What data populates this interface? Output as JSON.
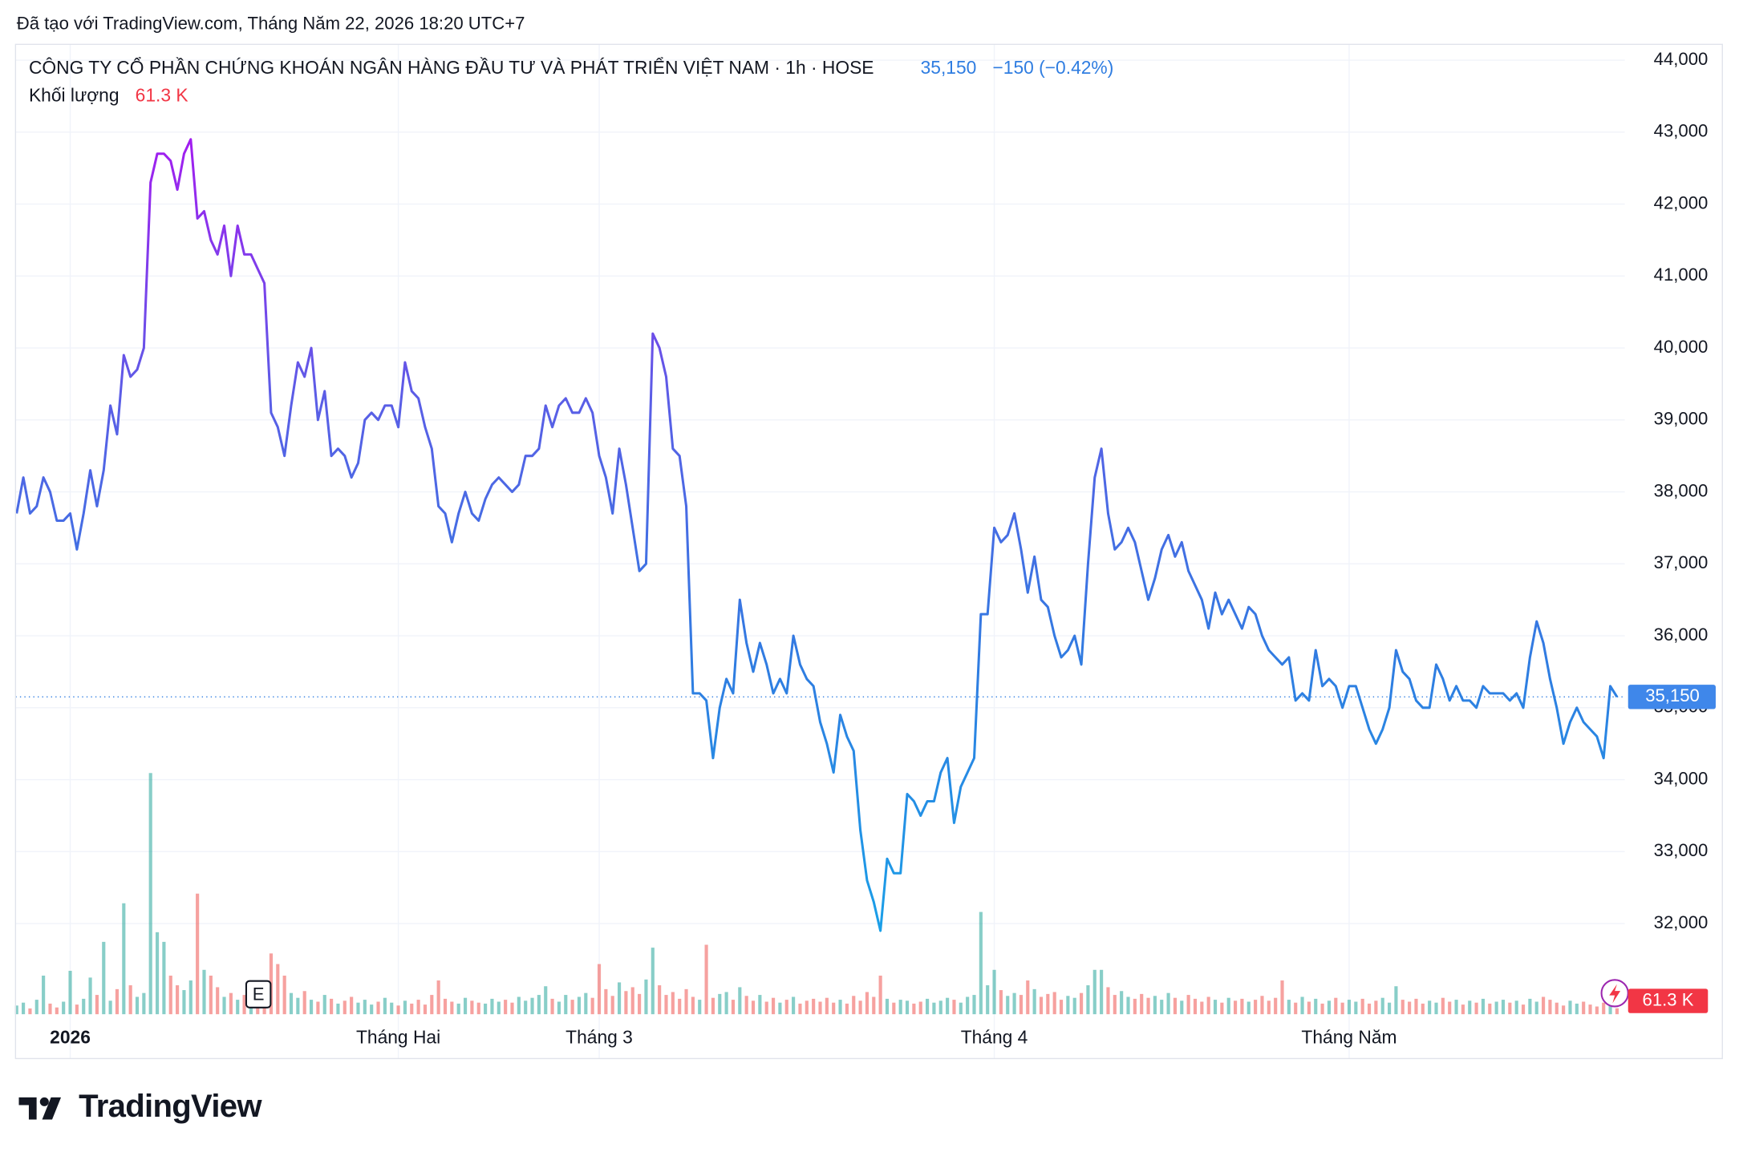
{
  "caption": "Đã tạo với TradingView.com, Tháng Năm 22, 2026 18:20 UTC+7",
  "branding": "TradingView",
  "chart_data": {
    "type": "line",
    "title": "CÔNG TY CỔ PHẦN CHỨNG KHOÁN NGÂN HÀNG ĐẦU TƯ VÀ PHÁT TRIỂN VIỆT NAM · 1h · HOSE",
    "price_label": "35,150",
    "change_label": "−150 (−0.42%)",
    "volume_title": "Khối lượng",
    "volume_label": "61.3 K",
    "earnings_marker": "E",
    "grid": true,
    "xlim": [
      0,
      239
    ],
    "xticks": [
      {
        "value": 8,
        "label": "2026"
      },
      {
        "value": 57,
        "label": "Tháng Hai"
      },
      {
        "value": 87,
        "label": "Tháng 3"
      },
      {
        "value": 146,
        "label": "Tháng 4"
      },
      {
        "value": 199,
        "label": "Tháng Năm"
      }
    ],
    "ylim": [
      30740,
      44220
    ],
    "yticks": [
      {
        "value": 32000,
        "label": "32,000"
      },
      {
        "value": 33000,
        "label": "33,000"
      },
      {
        "value": 34000,
        "label": "34,000"
      },
      {
        "value": 35000,
        "label": "35,000"
      },
      {
        "value": 36000,
        "label": "36,000"
      },
      {
        "value": 37000,
        "label": "37,000"
      },
      {
        "value": 38000,
        "label": "38,000"
      },
      {
        "value": 39000,
        "label": "39,000"
      },
      {
        "value": 40000,
        "label": "40,000"
      },
      {
        "value": 41000,
        "label": "41,000"
      },
      {
        "value": 42000,
        "label": "42,000"
      },
      {
        "value": 43000,
        "label": "43,000"
      },
      {
        "value": 44000,
        "label": "44,000"
      }
    ],
    "series": [
      {
        "gradient": [
          "#a41cf0",
          "#5a5ee6",
          "#2f7de1",
          "#1aa0e8"
        ],
        "values": [
          37700,
          38200,
          37700,
          37800,
          38200,
          38000,
          37600,
          37600,
          37700,
          37200,
          37700,
          38300,
          37800,
          38300,
          39200,
          38800,
          39900,
          39600,
          39700,
          40000,
          42300,
          42700,
          42700,
          42600,
          42200,
          42700,
          42900,
          41800,
          41900,
          41500,
          41300,
          41700,
          41000,
          41700,
          41300,
          41300,
          41100,
          40900,
          39100,
          38900,
          38500,
          39200,
          39800,
          39600,
          40000,
          39000,
          39400,
          38500,
          38600,
          38500,
          38200,
          38400,
          39000,
          39100,
          39000,
          39200,
          39200,
          38900,
          39800,
          39400,
          39300,
          38900,
          38600,
          37800,
          37700,
          37300,
          37700,
          38000,
          37700,
          37600,
          37900,
          38100,
          38200,
          38100,
          38000,
          38100,
          38500,
          38500,
          38600,
          39200,
          38900,
          39200,
          39300,
          39100,
          39100,
          39300,
          39100,
          38500,
          38200,
          37700,
          38600,
          38100,
          37500,
          36900,
          37000,
          40200,
          40000,
          39600,
          38600,
          38500,
          37800,
          35200,
          35200,
          35100,
          34300,
          35000,
          35400,
          35200,
          36500,
          35900,
          35500,
          35900,
          35600,
          35200,
          35400,
          35200,
          36000,
          35600,
          35400,
          35300,
          34800,
          34500,
          34100,
          34900,
          34600,
          34400,
          33300,
          32600,
          32300,
          31900,
          32900,
          32700,
          32700,
          33800,
          33700,
          33500,
          33700,
          33700,
          34100,
          34300,
          33400,
          33900,
          34100,
          34300,
          36300,
          36300,
          37500,
          37300,
          37400,
          37700,
          37200,
          36600,
          37100,
          36500,
          36400,
          36000,
          35700,
          35800,
          36000,
          35600,
          37000,
          38200,
          38600,
          37700,
          37200,
          37300,
          37500,
          37300,
          36900,
          36500,
          36800,
          37200,
          37400,
          37100,
          37300,
          36900,
          36700,
          36500,
          36100,
          36600,
          36300,
          36500,
          36300,
          36100,
          36400,
          36300,
          36000,
          35800,
          35700,
          35600,
          35700,
          35100,
          35200,
          35100,
          35800,
          35300,
          35400,
          35300,
          35000,
          35300,
          35300,
          35000,
          34700,
          34500,
          34700,
          35000,
          35800,
          35500,
          35400,
          35100,
          35000,
          35000,
          35600,
          35400,
          35100,
          35300,
          35100,
          35100,
          35000,
          35300,
          35200,
          35200,
          35200,
          35100,
          35200,
          35000,
          35700,
          36200,
          35900,
          35400,
          35000,
          34500,
          34800,
          35000,
          34800,
          34700,
          34600,
          34300,
          35300,
          35150
        ]
      }
    ],
    "volume": {
      "up_color": "#26a69a",
      "down_color": "#ef5350",
      "ylim": [
        0,
        2700000
      ],
      "values": [
        90000,
        120000,
        60000,
        150000,
        400000,
        110000,
        70000,
        130000,
        450000,
        100000,
        160000,
        380000,
        200000,
        750000,
        140000,
        260000,
        1150000,
        300000,
        180000,
        220000,
        2500000,
        850000,
        750000,
        400000,
        300000,
        250000,
        350000,
        1250000,
        460000,
        400000,
        280000,
        180000,
        220000,
        150000,
        200000,
        160000,
        260000,
        300000,
        630000,
        520000,
        400000,
        220000,
        170000,
        240000,
        150000,
        130000,
        200000,
        160000,
        110000,
        140000,
        180000,
        120000,
        150000,
        100000,
        130000,
        170000,
        120000,
        90000,
        140000,
        110000,
        150000,
        100000,
        200000,
        350000,
        160000,
        130000,
        110000,
        170000,
        140000,
        120000,
        110000,
        160000,
        130000,
        150000,
        120000,
        180000,
        140000,
        170000,
        200000,
        290000,
        160000,
        130000,
        200000,
        150000,
        180000,
        220000,
        170000,
        520000,
        260000,
        190000,
        330000,
        240000,
        280000,
        210000,
        360000,
        690000,
        300000,
        200000,
        230000,
        160000,
        260000,
        180000,
        150000,
        720000,
        170000,
        210000,
        230000,
        150000,
        280000,
        190000,
        140000,
        200000,
        130000,
        170000,
        120000,
        150000,
        180000,
        110000,
        140000,
        160000,
        130000,
        170000,
        120000,
        150000,
        110000,
        190000,
        140000,
        230000,
        180000,
        400000,
        160000,
        120000,
        150000,
        140000,
        110000,
        130000,
        160000,
        120000,
        140000,
        170000,
        150000,
        120000,
        180000,
        200000,
        1060000,
        300000,
        460000,
        250000,
        190000,
        220000,
        200000,
        350000,
        260000,
        180000,
        210000,
        230000,
        150000,
        190000,
        170000,
        220000,
        300000,
        460000,
        460000,
        280000,
        200000,
        240000,
        180000,
        160000,
        210000,
        170000,
        190000,
        150000,
        220000,
        170000,
        140000,
        200000,
        160000,
        130000,
        180000,
        150000,
        120000,
        170000,
        140000,
        160000,
        130000,
        150000,
        190000,
        140000,
        170000,
        350000,
        150000,
        120000,
        180000,
        130000,
        160000,
        110000,
        140000,
        170000,
        120000,
        150000,
        130000,
        160000,
        110000,
        140000,
        170000,
        120000,
        290000,
        150000,
        130000,
        160000,
        110000,
        140000,
        120000,
        170000,
        130000,
        150000,
        100000,
        140000,
        120000,
        160000,
        110000,
        130000,
        150000,
        120000,
        140000,
        100000,
        160000,
        130000,
        180000,
        150000,
        120000,
        90000,
        140000,
        110000,
        130000,
        100000,
        80000,
        120000,
        90000,
        61300
      ]
    }
  }
}
